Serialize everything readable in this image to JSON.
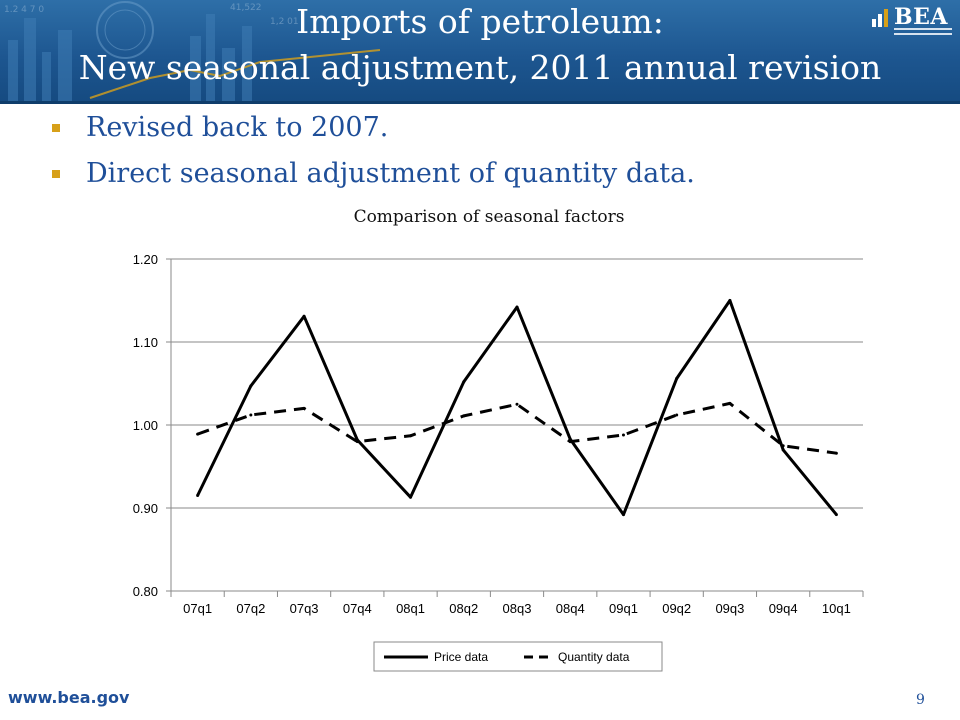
{
  "slide": {
    "title_line1": "Imports of petroleum:",
    "title_line2": "New seasonal adjustment, 2011 annual revision",
    "logo_text": "BEA",
    "bullets": [
      "Revised back to 2007.",
      "Direct seasonal adjustment of quantity data."
    ],
    "footer_url": "www.bea.gov",
    "page_number": "9",
    "colors": {
      "header": "#1d5690",
      "bullet_text": "#1f4f99",
      "bullet_marker": "#d7a019",
      "series": "#000000"
    }
  },
  "chart_data": {
    "type": "line",
    "title": "Comparison of seasonal factors",
    "xlabel": "",
    "ylabel": "",
    "categories": [
      "07q1",
      "07q2",
      "07q3",
      "07q4",
      "08q1",
      "08q2",
      "08q3",
      "08q4",
      "09q1",
      "09q2",
      "09q3",
      "09q4",
      "10q1"
    ],
    "series": [
      {
        "name": "Price data",
        "style": "solid",
        "values": [
          0.915,
          1.047,
          1.131,
          0.982,
          0.913,
          1.052,
          1.142,
          0.983,
          0.892,
          1.056,
          1.15,
          0.97,
          0.892
        ]
      },
      {
        "name": "Quantity data",
        "style": "dashed",
        "values": [
          0.989,
          1.012,
          1.02,
          0.98,
          0.987,
          1.011,
          1.025,
          0.98,
          0.988,
          1.012,
          1.026,
          0.975,
          0.966
        ]
      }
    ],
    "ylim": [
      0.8,
      1.2
    ],
    "yticks": [
      "0.80",
      "0.90",
      "1.00",
      "1.10",
      "1.20"
    ],
    "grid": true,
    "legend": "bottom"
  }
}
